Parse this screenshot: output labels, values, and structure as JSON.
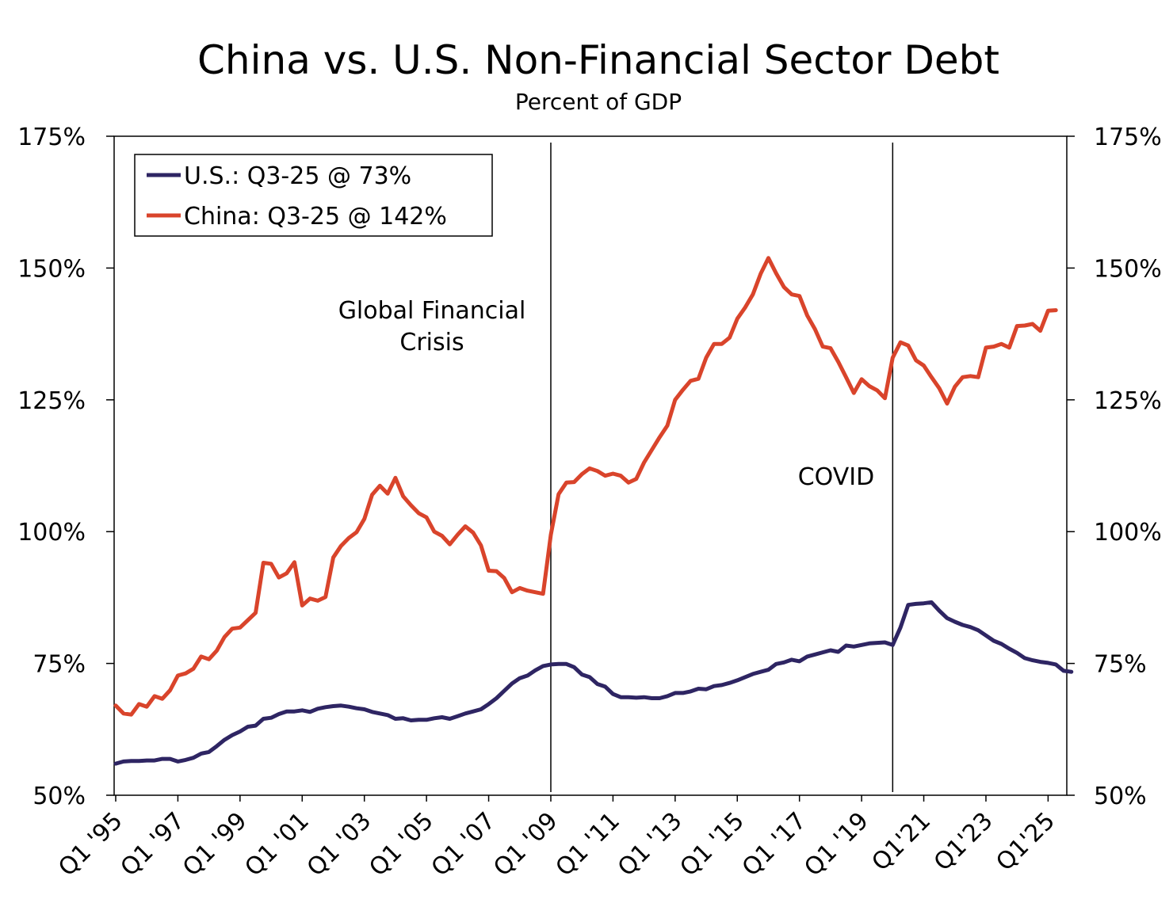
{
  "chart_data": {
    "type": "line",
    "title": "China vs. U.S. Non-Financial Sector Debt",
    "subtitle": "Percent of GDP",
    "ylim": [
      50,
      175
    ],
    "y_ticks": [
      50,
      75,
      100,
      125,
      150,
      175
    ],
    "y_tick_labels": [
      "50%",
      "75%",
      "100%",
      "125%",
      "150%",
      "175%"
    ],
    "x_start": 1995.0,
    "x_end": 2025.5,
    "x_ticks": [
      1995,
      1997,
      1999,
      2001,
      2003,
      2005,
      2007,
      2009,
      2011,
      2013,
      2015,
      2017,
      2019,
      2021,
      2023,
      2025
    ],
    "x_tick_labels": [
      "Q1 '95",
      "Q1 '97",
      "Q1 '99",
      "Q1 '01",
      "Q1 '03",
      "Q1 '05",
      "Q1 '07",
      "Q1 '09",
      "Q1 '11",
      "Q1 '13",
      "Q1 '15",
      "Q1 '17",
      "Q1 '19",
      "Q1'21",
      "Q1'23",
      "Q1'25"
    ],
    "grid": false,
    "legend": "top-left",
    "annotations": [
      {
        "text_lines": [
          "Global Financial",
          "Crisis"
        ],
        "x": 2009.0
      },
      {
        "text_lines": [
          "COVID"
        ],
        "x": 2020.0
      }
    ],
    "series": [
      {
        "name": "U.S.",
        "legend_label": "U.S.: Q3-25 @ 73%",
        "color": "#2e2563",
        "values": [
          56.0,
          56.4,
          56.5,
          56.5,
          56.6,
          56.6,
          56.9,
          56.9,
          56.4,
          56.7,
          57.1,
          57.9,
          58.2,
          59.3,
          60.5,
          61.4,
          62.1,
          63.0,
          63.2,
          64.5,
          64.7,
          65.4,
          65.9,
          65.9,
          66.1,
          65.8,
          66.4,
          66.7,
          66.9,
          67.0,
          66.8,
          66.5,
          66.3,
          65.8,
          65.5,
          65.2,
          64.5,
          64.6,
          64.2,
          64.3,
          64.3,
          64.6,
          64.8,
          64.5,
          65.0,
          65.5,
          65.9,
          66.3,
          67.3,
          68.4,
          69.8,
          71.2,
          72.2,
          72.7,
          73.7,
          74.5,
          74.8,
          74.9,
          74.9,
          74.3,
          72.9,
          72.4,
          71.1,
          70.6,
          69.2,
          68.6,
          68.6,
          68.5,
          68.6,
          68.4,
          68.4,
          68.8,
          69.4,
          69.4,
          69.7,
          70.2,
          70.1,
          70.7,
          70.9,
          71.3,
          71.8,
          72.4,
          73.0,
          73.4,
          73.8,
          74.9,
          75.2,
          75.7,
          75.4,
          76.3,
          76.7,
          77.1,
          77.5,
          77.2,
          78.4,
          78.2,
          78.5,
          78.8,
          78.9,
          79.0,
          78.5,
          81.8,
          86.1,
          86.3,
          86.4,
          86.6,
          85.0,
          83.6,
          82.9,
          82.3,
          81.9,
          81.3,
          80.3,
          79.3,
          78.7,
          77.8,
          77.0,
          76.0,
          75.6,
          75.3,
          75.1,
          74.8,
          73.6,
          73.4
        ]
      },
      {
        "name": "China",
        "legend_label": "China: Q3-25 @ 142%",
        "color": "#d9442b",
        "values": [
          67.0,
          65.5,
          65.3,
          67.3,
          66.8,
          68.8,
          68.3,
          69.9,
          72.7,
          73.1,
          74.0,
          76.3,
          75.8,
          77.4,
          80.0,
          81.6,
          81.8,
          83.2,
          84.6,
          94.1,
          93.9,
          91.3,
          92.1,
          94.2,
          86.0,
          87.3,
          86.9,
          87.6,
          95.1,
          97.3,
          98.8,
          99.9,
          102.4,
          107.0,
          108.7,
          107.2,
          110.2,
          106.7,
          105.0,
          103.5,
          102.7,
          100.0,
          99.2,
          97.6,
          99.4,
          101.0,
          99.8,
          97.4,
          92.6,
          92.5,
          91.2,
          88.5,
          89.3,
          88.8,
          88.5,
          88.2,
          99.4,
          107.1,
          109.3,
          109.4,
          110.9,
          112.0,
          111.5,
          110.6,
          111.0,
          110.6,
          109.3,
          110.0,
          113.1,
          115.5,
          117.9,
          120.1,
          125.0,
          126.9,
          128.6,
          129.0,
          133.0,
          135.6,
          135.6,
          136.8,
          140.4,
          142.5,
          145.0,
          148.9,
          151.9,
          149.0,
          146.4,
          145.0,
          144.7,
          141.0,
          138.4,
          135.1,
          134.8,
          132.2,
          129.3,
          126.3,
          128.9,
          127.6,
          126.8,
          125.3,
          133.0,
          135.9,
          135.3,
          132.5,
          131.5,
          129.3,
          127.2,
          124.3,
          127.5,
          129.3,
          129.5,
          129.3,
          134.9,
          135.1,
          135.6,
          134.9,
          139.0,
          139.1,
          139.4,
          138.1,
          141.9,
          142.0
        ]
      }
    ]
  }
}
